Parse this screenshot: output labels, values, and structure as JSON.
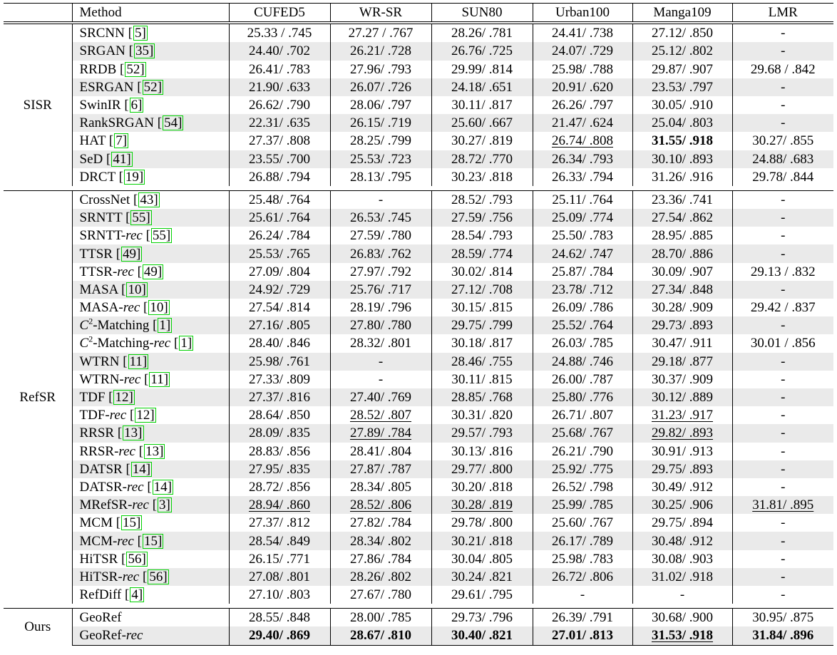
{
  "headers": [
    "Method",
    "CUFED5",
    "WR-SR",
    "SUN80",
    "Urban100",
    "Manga109",
    "LMR"
  ],
  "groups": [
    {
      "name": "SISR",
      "rows": [
        {
          "name": "SRCNN",
          "ref": "5",
          "vals": [
            [
              "25.33 / .745",
              ""
            ],
            [
              "27.27 / .767",
              ""
            ],
            [
              "28.26/ .781",
              ""
            ],
            [
              "24.41/ .738",
              ""
            ],
            [
              "27.12/ .850",
              ""
            ],
            [
              "-",
              ""
            ]
          ]
        },
        {
          "name": "SRGAN",
          "ref": "35",
          "vals": [
            [
              "24.40/ .702",
              ""
            ],
            [
              "26.21/ .728",
              ""
            ],
            [
              "26.76/ .725",
              ""
            ],
            [
              "24.07/ .729",
              ""
            ],
            [
              "25.12/ .802",
              ""
            ],
            [
              "-",
              ""
            ]
          ]
        },
        {
          "name": "RRDB",
          "ref": "52",
          "vals": [
            [
              "26.41/ .783",
              ""
            ],
            [
              "27.96/ .793",
              ""
            ],
            [
              "29.99/ .814",
              ""
            ],
            [
              "25.98/ .788",
              ""
            ],
            [
              "29.87/ .907",
              ""
            ],
            [
              "29.68 / .842",
              ""
            ]
          ]
        },
        {
          "name": "ESRGAN",
          "ref": "52",
          "vals": [
            [
              "21.90/ .633",
              ""
            ],
            [
              "26.07/ .726",
              ""
            ],
            [
              "24.18/ .651",
              ""
            ],
            [
              "20.91/ .620",
              ""
            ],
            [
              "23.53/ .797",
              ""
            ],
            [
              "-",
              ""
            ]
          ]
        },
        {
          "name": "SwinIR",
          "ref": "6",
          "vals": [
            [
              "26.62/ .790",
              ""
            ],
            [
              "28.06/ .797",
              ""
            ],
            [
              "30.11/ .817",
              ""
            ],
            [
              "26.26/ .797",
              ""
            ],
            [
              "30.05/ .910",
              ""
            ],
            [
              "-",
              ""
            ]
          ]
        },
        {
          "name": "RankSRGAN",
          "ref": "54",
          "vals": [
            [
              "22.31/ .635",
              ""
            ],
            [
              "26.15/ .719",
              ""
            ],
            [
              "25.60/ .667",
              ""
            ],
            [
              "21.47/ .624",
              ""
            ],
            [
              "25.04/ .803",
              ""
            ],
            [
              "-",
              ""
            ]
          ]
        },
        {
          "name": "HAT",
          "ref": "7",
          "vals": [
            [
              "27.37/ .808",
              ""
            ],
            [
              "28.25/ .799",
              ""
            ],
            [
              "30.27/ .819",
              ""
            ],
            [
              "26.74/ .808",
              "u"
            ],
            [
              "31.55/ .918",
              "b"
            ],
            [
              "30.27/ .855",
              ""
            ]
          ]
        },
        {
          "name": "SeD",
          "ref": "41",
          "vals": [
            [
              "23.55/ .700",
              ""
            ],
            [
              "25.53/ .723",
              ""
            ],
            [
              "28.72/ .770",
              ""
            ],
            [
              "26.34/ .793",
              ""
            ],
            [
              "30.10/ .893",
              ""
            ],
            [
              "24.88/ .683",
              ""
            ]
          ]
        },
        {
          "name": "DRCT",
          "ref": "19",
          "vals": [
            [
              "26.88/ .794",
              ""
            ],
            [
              "28.13/ .795",
              ""
            ],
            [
              "30.23/ .818",
              ""
            ],
            [
              "26.33/ .794",
              ""
            ],
            [
              "31.26/ .916",
              ""
            ],
            [
              "29.78/ .844",
              ""
            ]
          ]
        }
      ]
    },
    {
      "name": "RefSR",
      "rows": [
        {
          "name": "CrossNet",
          "ref": "43",
          "vals": [
            [
              "25.48/ .764",
              ""
            ],
            [
              "-",
              ""
            ],
            [
              "28.52/ .793",
              ""
            ],
            [
              "25.11/ .764",
              ""
            ],
            [
              "23.36/ .741",
              ""
            ],
            [
              "-",
              ""
            ]
          ]
        },
        {
          "name": "SRNTT",
          "ref": "55",
          "vals": [
            [
              "25.61/ .764",
              ""
            ],
            [
              "26.53/ .745",
              ""
            ],
            [
              "27.59/ .756",
              ""
            ],
            [
              "25.09/ .774",
              ""
            ],
            [
              "27.54/ .862",
              ""
            ],
            [
              "-",
              ""
            ]
          ]
        },
        {
          "name": "SRNTT-",
          "it": "rec",
          "ref": "55",
          "vals": [
            [
              "26.24/ .784",
              ""
            ],
            [
              "27.59/ .780",
              ""
            ],
            [
              "28.54/ .793",
              ""
            ],
            [
              "25.50/ .783",
              ""
            ],
            [
              "28.95/ .885",
              ""
            ],
            [
              "-",
              ""
            ]
          ]
        },
        {
          "name": "TTSR",
          "ref": "49",
          "vals": [
            [
              "25.53/ .765",
              ""
            ],
            [
              "26.83/ .762",
              ""
            ],
            [
              "28.59/ .774",
              ""
            ],
            [
              "24.62/ .747",
              ""
            ],
            [
              "28.70/ .886",
              ""
            ],
            [
              "-",
              ""
            ]
          ]
        },
        {
          "name": "TTSR-",
          "it": "rec",
          "ref": "49",
          "vals": [
            [
              "27.09/ .804",
              ""
            ],
            [
              "27.97/ .792",
              ""
            ],
            [
              "30.02/ .814",
              ""
            ],
            [
              "25.87/ .784",
              ""
            ],
            [
              "30.09/ .907",
              ""
            ],
            [
              "29.13 / .832",
              ""
            ]
          ]
        },
        {
          "name": "MASA",
          "ref": "10",
          "vals": [
            [
              "24.92/ .729",
              ""
            ],
            [
              "25.76/ .717",
              ""
            ],
            [
              "27.12/ .708",
              ""
            ],
            [
              "23.78/ .712",
              ""
            ],
            [
              "27.34/ .848",
              ""
            ],
            [
              "-",
              ""
            ]
          ]
        },
        {
          "name": "MASA-",
          "it": "rec",
          "ref": "10",
          "vals": [
            [
              "27.54/ .814",
              ""
            ],
            [
              "28.19/ .796",
              ""
            ],
            [
              "30.15/ .815",
              ""
            ],
            [
              "26.09/ .786",
              ""
            ],
            [
              "30.28/ .909",
              ""
            ],
            [
              "29.42 / .837",
              ""
            ]
          ]
        },
        {
          "name": "-Matching",
          "cm": "C",
          "sup": "2",
          "ref": "1",
          "vals": [
            [
              "27.16/ .805",
              ""
            ],
            [
              "27.80/ .780",
              ""
            ],
            [
              "29.75/ .799",
              ""
            ],
            [
              "25.52/ .764",
              ""
            ],
            [
              "29.73/ .893",
              ""
            ],
            [
              "-",
              ""
            ]
          ]
        },
        {
          "name": "-Matching-",
          "cm": "C",
          "sup": "2",
          "it": "rec",
          "ref": "1",
          "vals": [
            [
              "28.40/ .846",
              ""
            ],
            [
              "28.32/ .801",
              ""
            ],
            [
              "30.18/ .817",
              ""
            ],
            [
              "26.03/ .785",
              ""
            ],
            [
              "30.47/ .911",
              ""
            ],
            [
              "30.01 / .856",
              ""
            ]
          ]
        },
        {
          "name": "WTRN",
          "ref": "11",
          "vals": [
            [
              "25.98/ .761",
              ""
            ],
            [
              "-",
              ""
            ],
            [
              "28.46/ .755",
              ""
            ],
            [
              "24.88/ .746",
              ""
            ],
            [
              "29.18/ .877",
              ""
            ],
            [
              "-",
              ""
            ]
          ]
        },
        {
          "name": "WTRN-",
          "it": "rec",
          "ref": "11",
          "vals": [
            [
              "27.33/ .809",
              ""
            ],
            [
              "-",
              ""
            ],
            [
              "30.11/ .815",
              ""
            ],
            [
              "26.00/ .787",
              ""
            ],
            [
              "30.37/ .909",
              ""
            ],
            [
              "-",
              ""
            ]
          ]
        },
        {
          "name": "TDF",
          "ref": "12",
          "vals": [
            [
              "27.37/ .816",
              ""
            ],
            [
              "27.40/ .769",
              ""
            ],
            [
              "28.85/ .768",
              ""
            ],
            [
              "25.80/ .776",
              ""
            ],
            [
              "30.12/ .889",
              ""
            ],
            [
              "-",
              ""
            ]
          ]
        },
        {
          "name": "TDF-",
          "it": "rec",
          "ref": "12",
          "vals": [
            [
              "28.64/ .850",
              ""
            ],
            [
              "28.52/ .807",
              "u"
            ],
            [
              "30.31/ .820",
              ""
            ],
            [
              "26.71/ .807",
              ""
            ],
            [
              "31.23/ .917",
              "u2"
            ],
            [
              "-",
              ""
            ]
          ]
        },
        {
          "name": "RRSR",
          "ref": "13",
          "vals": [
            [
              "28.09/ .835",
              ""
            ],
            [
              "27.89/ .784",
              "u1"
            ],
            [
              "29.57/ .793",
              ""
            ],
            [
              "25.68/ .767",
              ""
            ],
            [
              "29.82/ .893",
              "u2"
            ],
            [
              "-",
              ""
            ]
          ]
        },
        {
          "name": "RRSR-",
          "it": "rec",
          "ref": "13",
          "vals": [
            [
              "28.83/ .856",
              ""
            ],
            [
              "28.41/ .804",
              ""
            ],
            [
              "30.13/ .816",
              ""
            ],
            [
              "26.21/ .790",
              ""
            ],
            [
              "30.91/ .913",
              ""
            ],
            [
              "-",
              ""
            ]
          ]
        },
        {
          "name": "DATSR",
          "ref": "14",
          "vals": [
            [
              "27.95/ .835",
              ""
            ],
            [
              "27.87/ .787",
              ""
            ],
            [
              "29.77/ .800",
              ""
            ],
            [
              "25.92/ .775",
              ""
            ],
            [
              "29.75/ .893",
              ""
            ],
            [
              "-",
              ""
            ]
          ]
        },
        {
          "name": "DATSR-",
          "it": "rec",
          "ref": "14",
          "vals": [
            [
              "28.72/ .856",
              ""
            ],
            [
              "28.34/ .805",
              ""
            ],
            [
              "30.20/ .818",
              ""
            ],
            [
              "26.52/ .798",
              ""
            ],
            [
              "30.49/ .912",
              ""
            ],
            [
              "-",
              ""
            ]
          ]
        },
        {
          "name": "MRefSR-",
          "it": "rec",
          "ref": "3",
          "vals": [
            [
              "28.94/ .860",
              "u"
            ],
            [
              "28.52/ .806",
              "u1"
            ],
            [
              "30.28/ .819",
              "u"
            ],
            [
              "25.99/ .785",
              ""
            ],
            [
              "30.25/ .906",
              ""
            ],
            [
              "31.81/ .895",
              "u"
            ]
          ]
        },
        {
          "name": "MCM",
          "ref": "15",
          "vals": [
            [
              "27.37/ .812",
              ""
            ],
            [
              "27.82/ .784",
              ""
            ],
            [
              "29.78/ .800",
              ""
            ],
            [
              "25.60/ .767",
              ""
            ],
            [
              "29.75/ .894",
              ""
            ],
            [
              "-",
              ""
            ]
          ]
        },
        {
          "name": "MCM-",
          "it": "rec",
          "ref": "15",
          "vals": [
            [
              "28.54/ .849",
              ""
            ],
            [
              "28.34/ .802",
              ""
            ],
            [
              "30.21/ .818",
              ""
            ],
            [
              "26.17/ .789",
              ""
            ],
            [
              "30.48/ .912",
              ""
            ],
            [
              "-",
              ""
            ]
          ]
        },
        {
          "name": "HiTSR",
          "ref": "56",
          "vals": [
            [
              "26.15/ .771",
              ""
            ],
            [
              "27.86/ .784",
              ""
            ],
            [
              "30.04/ .805",
              ""
            ],
            [
              "25.98/ .783",
              ""
            ],
            [
              "30.08/ .903",
              ""
            ],
            [
              "-",
              ""
            ]
          ]
        },
        {
          "name": "HiTSR-",
          "it": "rec",
          "ref": "56",
          "vals": [
            [
              "27.08/ .801",
              ""
            ],
            [
              "28.26/ .802",
              ""
            ],
            [
              "30.24/ .821",
              ""
            ],
            [
              "26.72/ .806",
              ""
            ],
            [
              "31.02/ .918",
              ""
            ],
            [
              "-",
              ""
            ]
          ]
        },
        {
          "name": "RefDiff",
          "ref": "4",
          "vals": [
            [
              "27.10/ .803",
              ""
            ],
            [
              "27.67/ .780",
              ""
            ],
            [
              "29.61/ .795",
              ""
            ],
            [
              "-",
              ""
            ],
            [
              "-",
              ""
            ],
            [
              "-",
              ""
            ]
          ]
        }
      ]
    },
    {
      "name": "Ours",
      "rows": [
        {
          "name": "GeoRef",
          "vals": [
            [
              "28.55/ .848",
              ""
            ],
            [
              "28.00/ .785",
              ""
            ],
            [
              "29.73/ .796",
              ""
            ],
            [
              "26.39/ .791",
              ""
            ],
            [
              "30.68/ .900",
              ""
            ],
            [
              "30.95/ .875",
              ""
            ]
          ]
        },
        {
          "name": "GeoRef-",
          "it": "rec",
          "vals": [
            [
              "29.40/ .869",
              "b"
            ],
            [
              "28.67/ .810",
              "b"
            ],
            [
              "30.40/ .821",
              "b"
            ],
            [
              "27.01/ .813",
              "b"
            ],
            [
              "31.53/ .918",
              "ub"
            ],
            [
              "31.84/ .896",
              "b"
            ]
          ]
        }
      ]
    }
  ]
}
